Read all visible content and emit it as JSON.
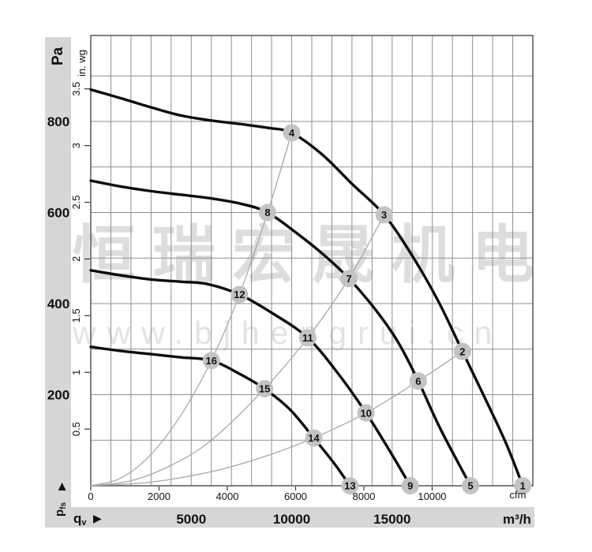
{
  "watermark": {
    "line1": "恒瑞宏晟机电",
    "line2": "www.bjhengrui.cn"
  },
  "axes": {
    "pa_label": "Pa",
    "inwg_label": "in. wg",
    "pfs_main": "p",
    "pfs_sub": "fs",
    "qv_main": "q",
    "qv_sub": "v",
    "arrow_glyph": "▶",
    "cfm_label": "cfm",
    "m3h_label": "m³/h",
    "pa_ticks": [
      800,
      600,
      400,
      200
    ],
    "inwg_ticks": [
      3.5,
      3,
      2.5,
      2,
      1.5,
      1,
      0.5
    ],
    "cfm_ticks": [
      0,
      2000,
      4000,
      6000,
      8000,
      10000
    ],
    "m3h_ticks": [
      5000,
      10000,
      15000
    ]
  },
  "colors": {
    "curve": "#0d0d0d",
    "grid": "#8f8f8f",
    "axis": "#4a4a4a",
    "band": "#d6d6d6",
    "system_line": "#a8a8a8",
    "marker_fill": "#c3c3c3",
    "marker_text": "#ffffff",
    "text": "#111111"
  },
  "chart_data": {
    "type": "line",
    "title": "",
    "xlabel": "qv",
    "ylabel": "pfs",
    "grid": true,
    "x_axis": {
      "primary_unit": "m³/h",
      "primary_ticks": [
        5000,
        10000,
        15000
      ],
      "secondary_unit": "cfm",
      "secondary_ticks": [
        0,
        2000,
        4000,
        6000,
        8000,
        10000
      ],
      "range_m3h": [
        0,
        22000
      ]
    },
    "y_axis": {
      "primary_unit": "Pa",
      "primary_ticks": [
        200,
        400,
        600,
        800
      ],
      "secondary_unit": "in. wg",
      "secondary_ticks": [
        0.5,
        1,
        1.5,
        2,
        2.5,
        3,
        3.5
      ],
      "range_pa": [
        0,
        990
      ]
    },
    "series": [
      {
        "name": "fan-curve-1",
        "marker_labels": [
          "4",
          "3",
          "2",
          "1"
        ],
        "points": [
          [
            0,
            870
          ],
          [
            1500,
            851
          ],
          [
            3000,
            831
          ],
          [
            4500,
            813
          ],
          [
            6000,
            802
          ],
          [
            7500,
            794
          ],
          [
            8800,
            786
          ],
          [
            10000,
            775
          ],
          [
            11500,
            728
          ],
          [
            13000,
            663
          ],
          [
            14600,
            595
          ],
          [
            16000,
            505
          ],
          [
            17300,
            405
          ],
          [
            18500,
            295
          ],
          [
            19700,
            185
          ],
          [
            20700,
            90
          ],
          [
            21500,
            0
          ]
        ]
      },
      {
        "name": "fan-curve-2",
        "marker_labels": [
          "8",
          "7",
          "6",
          "5"
        ],
        "points": [
          [
            0,
            670
          ],
          [
            1500,
            657
          ],
          [
            3000,
            647
          ],
          [
            4500,
            639
          ],
          [
            6000,
            631
          ],
          [
            7500,
            619
          ],
          [
            8800,
            600
          ],
          [
            10300,
            553
          ],
          [
            11600,
            507
          ],
          [
            12850,
            455
          ],
          [
            14200,
            385
          ],
          [
            15300,
            315
          ],
          [
            16300,
            230
          ],
          [
            17400,
            125
          ],
          [
            18900,
            0
          ]
        ]
      },
      {
        "name": "fan-curve-3",
        "marker_labels": [
          "12",
          "11",
          "10",
          "9"
        ],
        "points": [
          [
            0,
            473
          ],
          [
            1500,
            462
          ],
          [
            3000,
            453
          ],
          [
            4500,
            448
          ],
          [
            5800,
            443
          ],
          [
            7400,
            420
          ],
          [
            9000,
            380
          ],
          [
            10800,
            325
          ],
          [
            12300,
            247
          ],
          [
            13700,
            160
          ],
          [
            14900,
            75
          ],
          [
            15900,
            0
          ]
        ]
      },
      {
        "name": "fan-curve-4",
        "marker_labels": [
          "16",
          "15",
          "14",
          "13"
        ],
        "points": [
          [
            0,
            305
          ],
          [
            1500,
            296
          ],
          [
            3000,
            289
          ],
          [
            4500,
            282
          ],
          [
            6000,
            275
          ],
          [
            7400,
            246
          ],
          [
            8650,
            213
          ],
          [
            9900,
            168
          ],
          [
            11100,
            105
          ],
          [
            12100,
            50
          ],
          [
            12900,
            0
          ]
        ]
      }
    ],
    "system_lines": [
      {
        "name": "system-line-a",
        "points": [
          [
            0,
            0
          ],
          [
            1500,
            17
          ],
          [
            3000,
            69
          ],
          [
            4500,
            156
          ],
          [
            6000,
            275
          ],
          [
            7400,
            420
          ],
          [
            8800,
            600
          ],
          [
            10000,
            775
          ]
        ]
      },
      {
        "name": "system-line-b",
        "points": [
          [
            0,
            0
          ],
          [
            2000,
            11
          ],
          [
            4000,
            45
          ],
          [
            6000,
            100
          ],
          [
            8650,
            213
          ],
          [
            10800,
            325
          ],
          [
            12850,
            455
          ],
          [
            14600,
            595
          ]
        ]
      },
      {
        "name": "system-line-c",
        "points": [
          [
            0,
            0
          ],
          [
            3000,
            8
          ],
          [
            6000,
            31
          ],
          [
            8500,
            62
          ],
          [
            11100,
            105
          ],
          [
            13700,
            160
          ],
          [
            16300,
            230
          ],
          [
            18500,
            295
          ]
        ]
      }
    ],
    "markers": [
      {
        "label": "1",
        "m3h": 21500,
        "pa": 0
      },
      {
        "label": "2",
        "m3h": 18500,
        "pa": 295
      },
      {
        "label": "3",
        "m3h": 14600,
        "pa": 595
      },
      {
        "label": "4",
        "m3h": 10000,
        "pa": 775
      },
      {
        "label": "5",
        "m3h": 18900,
        "pa": 0
      },
      {
        "label": "6",
        "m3h": 16300,
        "pa": 230
      },
      {
        "label": "7",
        "m3h": 12850,
        "pa": 455
      },
      {
        "label": "8",
        "m3h": 8800,
        "pa": 600
      },
      {
        "label": "9",
        "m3h": 15900,
        "pa": 0
      },
      {
        "label": "10",
        "m3h": 13700,
        "pa": 160
      },
      {
        "label": "11",
        "m3h": 10800,
        "pa": 325
      },
      {
        "label": "12",
        "m3h": 7400,
        "pa": 420
      },
      {
        "label": "13",
        "m3h": 12900,
        "pa": 0
      },
      {
        "label": "14",
        "m3h": 11100,
        "pa": 105
      },
      {
        "label": "15",
        "m3h": 8650,
        "pa": 213
      },
      {
        "label": "16",
        "m3h": 6000,
        "pa": 275
      }
    ]
  }
}
